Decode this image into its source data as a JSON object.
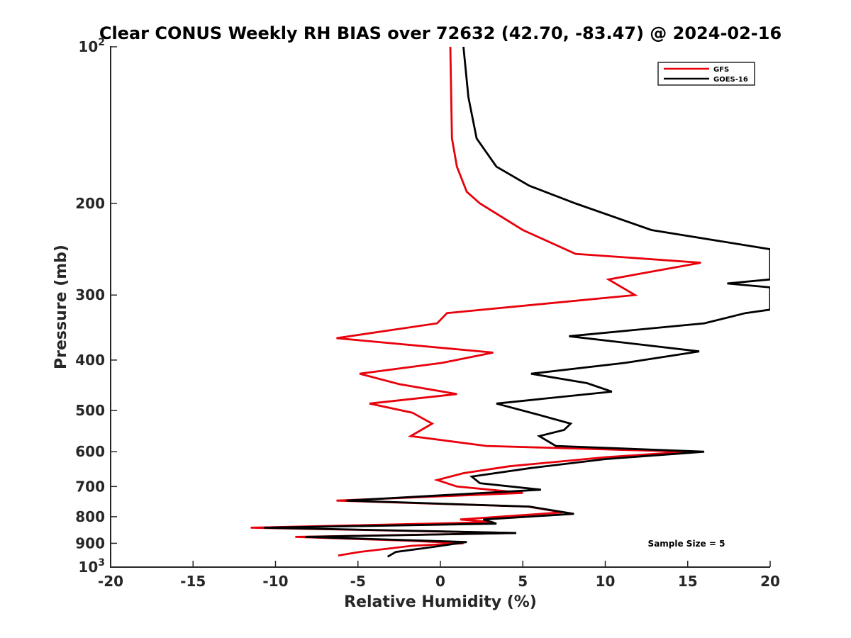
{
  "chart_data": {
    "type": "line",
    "title": "Clear CONUS Weekly RH BIAS over 72632 (42.70, -83.47) @ 2024-02-16",
    "xlabel": "Relative Humidity (%)",
    "ylabel": "Pressure (mb)",
    "xlim": [
      -20,
      20
    ],
    "ylim": [
      100,
      1000
    ],
    "y_scale": "log",
    "y_reversed": true,
    "x_ticks": [
      -20,
      -15,
      -10,
      -5,
      0,
      5,
      10,
      15,
      20
    ],
    "x_tick_labels": [
      "-20",
      "-15",
      "-10",
      "-5",
      "0",
      "5",
      "10",
      "15",
      "20"
    ],
    "y_ticks": [
      100,
      200,
      300,
      400,
      500,
      600,
      700,
      800,
      900,
      1000
    ],
    "y_tick_labels": [
      {
        "base": "10",
        "exp": "2"
      },
      {
        "base": "200",
        "exp": ""
      },
      {
        "base": "300",
        "exp": ""
      },
      {
        "base": "400",
        "exp": ""
      },
      {
        "base": "500",
        "exp": ""
      },
      {
        "base": "600",
        "exp": ""
      },
      {
        "base": "700",
        "exp": ""
      },
      {
        "base": "800",
        "exp": ""
      },
      {
        "base": "900",
        "exp": ""
      },
      {
        "base": "10",
        "exp": "3"
      }
    ],
    "grid": false,
    "legend_position": "top-right",
    "annotation": "Sample Size = 5",
    "series": [
      {
        "name": "GFS",
        "color": "#e8000b",
        "points": [
          [
            0.6,
            100
          ],
          [
            0.7,
            150
          ],
          [
            1.0,
            170
          ],
          [
            1.6,
            190
          ],
          [
            2.4,
            200
          ],
          [
            5.0,
            225
          ],
          [
            8.2,
            250
          ],
          [
            15.8,
            260
          ],
          [
            10.2,
            280
          ],
          [
            11.8,
            300
          ],
          [
            0.4,
            325
          ],
          [
            -0.2,
            340
          ],
          [
            -6.3,
            363
          ],
          [
            3.2,
            387
          ],
          [
            0.1,
            405
          ],
          [
            -4.9,
            425
          ],
          [
            -2.5,
            445
          ],
          [
            1.0,
            465
          ],
          [
            -4.3,
            485
          ],
          [
            -1.7,
            505
          ],
          [
            -0.5,
            530
          ],
          [
            -1.8,
            560
          ],
          [
            2.8,
            585
          ],
          [
            15.0,
            600
          ],
          [
            10.0,
            615
          ],
          [
            4.2,
            640
          ],
          [
            1.4,
            660
          ],
          [
            -0.2,
            680
          ],
          [
            1.0,
            700
          ],
          [
            5.0,
            720
          ],
          [
            -6.3,
            745
          ],
          [
            5.3,
            765
          ],
          [
            7.4,
            785
          ],
          [
            1.2,
            810
          ],
          [
            3.2,
            820
          ],
          [
            -11.5,
            840
          ],
          [
            4.6,
            860
          ],
          [
            -8.8,
            875
          ],
          [
            -1.8,
            890
          ],
          [
            1.4,
            900
          ],
          [
            -1.7,
            910
          ],
          [
            -4.9,
            935
          ],
          [
            -6.2,
            950
          ]
        ]
      },
      {
        "name": "GOES-16",
        "color": "#000000",
        "points": [
          [
            1.4,
            100
          ],
          [
            1.7,
            125
          ],
          [
            2.2,
            150
          ],
          [
            3.4,
            170
          ],
          [
            5.4,
            185
          ],
          [
            8.2,
            200
          ],
          [
            12.8,
            225
          ],
          [
            20.0,
            245
          ],
          [
            20.0,
            280
          ],
          [
            17.4,
            285
          ],
          [
            20.0,
            290
          ],
          [
            20.0,
            320
          ],
          [
            18.5,
            325
          ],
          [
            16.0,
            340
          ],
          [
            7.8,
            360
          ],
          [
            15.7,
            385
          ],
          [
            11.2,
            405
          ],
          [
            5.5,
            425
          ],
          [
            8.9,
            443
          ],
          [
            10.4,
            460
          ],
          [
            3.4,
            485
          ],
          [
            6.0,
            510
          ],
          [
            7.9,
            530
          ],
          [
            7.5,
            545
          ],
          [
            6.0,
            560
          ],
          [
            7.0,
            585
          ],
          [
            16.0,
            600
          ],
          [
            10.0,
            620
          ],
          [
            5.5,
            645
          ],
          [
            1.9,
            670
          ],
          [
            2.4,
            690
          ],
          [
            6.1,
            710
          ],
          [
            -5.7,
            745
          ],
          [
            5.4,
            765
          ],
          [
            8.1,
            790
          ],
          [
            2.6,
            810
          ],
          [
            3.4,
            825
          ],
          [
            -10.7,
            840
          ],
          [
            4.6,
            860
          ],
          [
            -8.2,
            875
          ],
          [
            1.6,
            895
          ],
          [
            -0.5,
            915
          ],
          [
            -2.7,
            935
          ],
          [
            -3.2,
            955
          ]
        ]
      }
    ]
  }
}
